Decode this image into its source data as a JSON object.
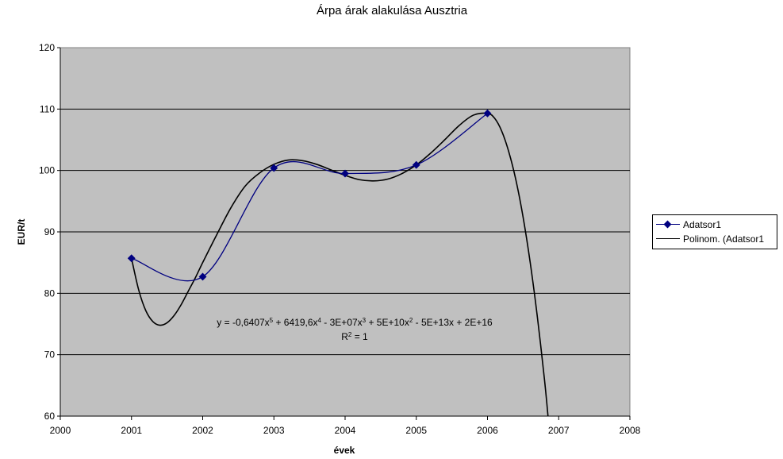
{
  "chart_data": {
    "type": "line",
    "title": "Árpa árak alakulása Ausztria",
    "xlabel": "évek",
    "ylabel": "EUR/t",
    "xlim": [
      2000,
      2008
    ],
    "ylim": [
      60,
      120
    ],
    "x_ticks": [
      "2000",
      "2001",
      "2002",
      "2003",
      "2004",
      "2005",
      "2006",
      "2007",
      "2008"
    ],
    "y_ticks": [
      "60",
      "70",
      "80",
      "90",
      "100",
      "110",
      "120"
    ],
    "grid": true,
    "legend_position": "right",
    "series": [
      {
        "name": "Adatsor1",
        "color": "#000080",
        "marker": "diamond",
        "smooth": true,
        "x": [
          2001,
          2002,
          2003,
          2004,
          2005,
          2006
        ],
        "y": [
          85.7,
          82.7,
          100.4,
          99.5,
          100.9,
          109.3
        ]
      },
      {
        "name": "Polinom. (Adatsor1",
        "color": "#000000",
        "type": "trendline",
        "x": [
          2001,
          2001.1,
          2001.2,
          2001.3,
          2001.4,
          2001.5,
          2001.6,
          2001.7,
          2001.8,
          2001.9,
          2002,
          2002.2,
          2002.4,
          2002.6,
          2002.8,
          2003,
          2003.2,
          2003.4,
          2003.6,
          2003.8,
          2004,
          2004.2,
          2004.4,
          2004.6,
          2004.8,
          2005,
          2005.2,
          2005.4,
          2005.6,
          2005.8,
          2006,
          2006.1,
          2006.2,
          2006.3,
          2006.4,
          2006.5,
          2006.6,
          2006.7,
          2006.8,
          2006.85
        ],
        "y": [
          85.7,
          80.6,
          77.2,
          75.4,
          74.8,
          75.2,
          76.4,
          78.2,
          80.4,
          82.6,
          85.0,
          89.6,
          94.0,
          97.5,
          99.6,
          101.0,
          101.7,
          101.6,
          101.0,
          100.1,
          99.2,
          98.5,
          98.3,
          98.6,
          99.5,
          100.9,
          102.8,
          105.0,
          107.3,
          109.0,
          109.3,
          108.5,
          106.4,
          103.0,
          98.4,
          92.4,
          85.0,
          76.2,
          66.0,
          60.0
        ]
      }
    ],
    "annotation": {
      "equation_parts": [
        "y = -0,6407x",
        "5",
        " + 6419,6x",
        "4",
        " - 3E+07x",
        "3",
        " + 5E+10x",
        "2",
        " - 5E+13x + 2E+16"
      ],
      "r2_prefix": "R",
      "r2_exp": "2",
      "r2_value": " = 1"
    }
  }
}
